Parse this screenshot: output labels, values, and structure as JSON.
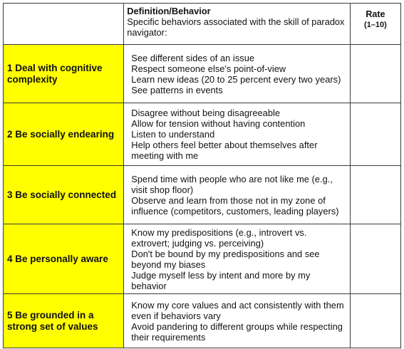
{
  "header": {
    "definition_title": "Definition/Behavior",
    "definition_subtitle": "Specific behaviors associated with the skill of paradox navigator:",
    "rate_title": "Rate",
    "rate_range": "(1–10)"
  },
  "rows": [
    {
      "skill": "1  Deal with cognitive complexity",
      "behaviors": [
        "See different sides of an issue",
        "Respect someone else's point-of-view",
        "Learn new ideas (20 to 25 percent every two years)",
        "See patterns in events"
      ]
    },
    {
      "skill": "2  Be socially endearing",
      "behaviors": [
        "Disagree without being disagreeable",
        "Allow for tension without having contention",
        "Listen to understand",
        "Help others feel better about themselves after meeting with me"
      ]
    },
    {
      "skill": "3  Be socially connected",
      "behaviors": [
        "Spend time with people who are not like me (e.g., visit shop floor)",
        "Observe and learn from those not in my zone of influence (competitors, customers, leading players)"
      ]
    },
    {
      "skill": "4  Be personally aware",
      "behaviors": [
        "Know my predispositions (e.g., introvert vs. extrovert; judging vs. perceiving)",
        "Don't be bound by my predispositions and see beyond my biases",
        "Judge myself less by intent and more by my behavior"
      ]
    },
    {
      "skill": "5  Be grounded in a strong set of values",
      "behaviors": [
        "Know my core values and act consistently with them even if behaviors vary",
        "Avoid pandering to different groups while respecting their requirements"
      ]
    }
  ]
}
